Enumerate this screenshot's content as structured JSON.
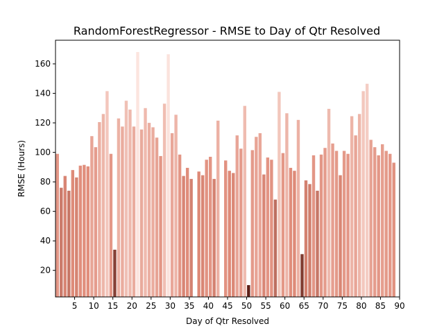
{
  "chart_data": {
    "type": "bar",
    "title": "RandomForestRegressor - RMSE to Day of Qtr Resolved",
    "xlabel": "Day of Qtr Resolved",
    "ylabel": "RMSE (Hours)",
    "xlim": [
      0,
      90
    ],
    "ylim": [
      2,
      176
    ],
    "xticks": [
      5,
      10,
      15,
      20,
      25,
      30,
      35,
      40,
      45,
      50,
      55,
      60,
      65,
      70,
      75,
      80,
      85,
      90
    ],
    "yticks": [
      20,
      40,
      60,
      80,
      100,
      120,
      140,
      160
    ],
    "grid": false,
    "legend": "none",
    "color_scale": {
      "low": "#5e1f17",
      "mid": "#e08c7a",
      "high": "#fce5df",
      "vmin": 10,
      "vmax": 168
    },
    "x": [
      0,
      1,
      2,
      3,
      4,
      5,
      6,
      7,
      8,
      9,
      10,
      11,
      12,
      13,
      14,
      15,
      16,
      17,
      18,
      19,
      20,
      21,
      22,
      23,
      24,
      25,
      26,
      27,
      28,
      29,
      30,
      31,
      32,
      33,
      34,
      35,
      37,
      38,
      39,
      40,
      41,
      42,
      44,
      45,
      46,
      47,
      48,
      49,
      50,
      51,
      52,
      53,
      54,
      55,
      56,
      57,
      58,
      59,
      60,
      61,
      62,
      63,
      64,
      65,
      66,
      67,
      68,
      69,
      70,
      71,
      72,
      73,
      74,
      75,
      76,
      77,
      78,
      79,
      80,
      81,
      82,
      83,
      84,
      85,
      86,
      87,
      88
    ],
    "values": [
      99,
      76,
      84,
      74,
      88,
      83,
      91,
      91.5,
      90.5,
      111,
      103.5,
      120.5,
      126,
      141.5,
      99,
      34,
      123,
      117.5,
      135,
      129,
      117.5,
      168,
      115.5,
      130,
      120,
      117,
      110,
      97.5,
      133,
      166.5,
      113,
      125.5,
      98.5,
      84,
      89.5,
      82,
      87,
      84.5,
      95,
      97,
      82,
      121.5,
      94.5,
      87.5,
      86,
      111.5,
      102.5,
      131.5,
      10,
      101.5,
      110.5,
      113,
      85,
      96.5,
      95,
      68,
      141,
      99.5,
      126.5,
      89.5,
      87.5,
      122,
      31,
      81,
      78.5,
      98,
      74,
      98.5,
      103,
      129.5,
      106,
      101,
      84.5,
      101,
      99,
      124.5,
      111.5,
      126,
      141.5,
      146.5,
      108.5,
      103.5,
      98,
      105.5,
      101,
      99,
      93
    ]
  }
}
